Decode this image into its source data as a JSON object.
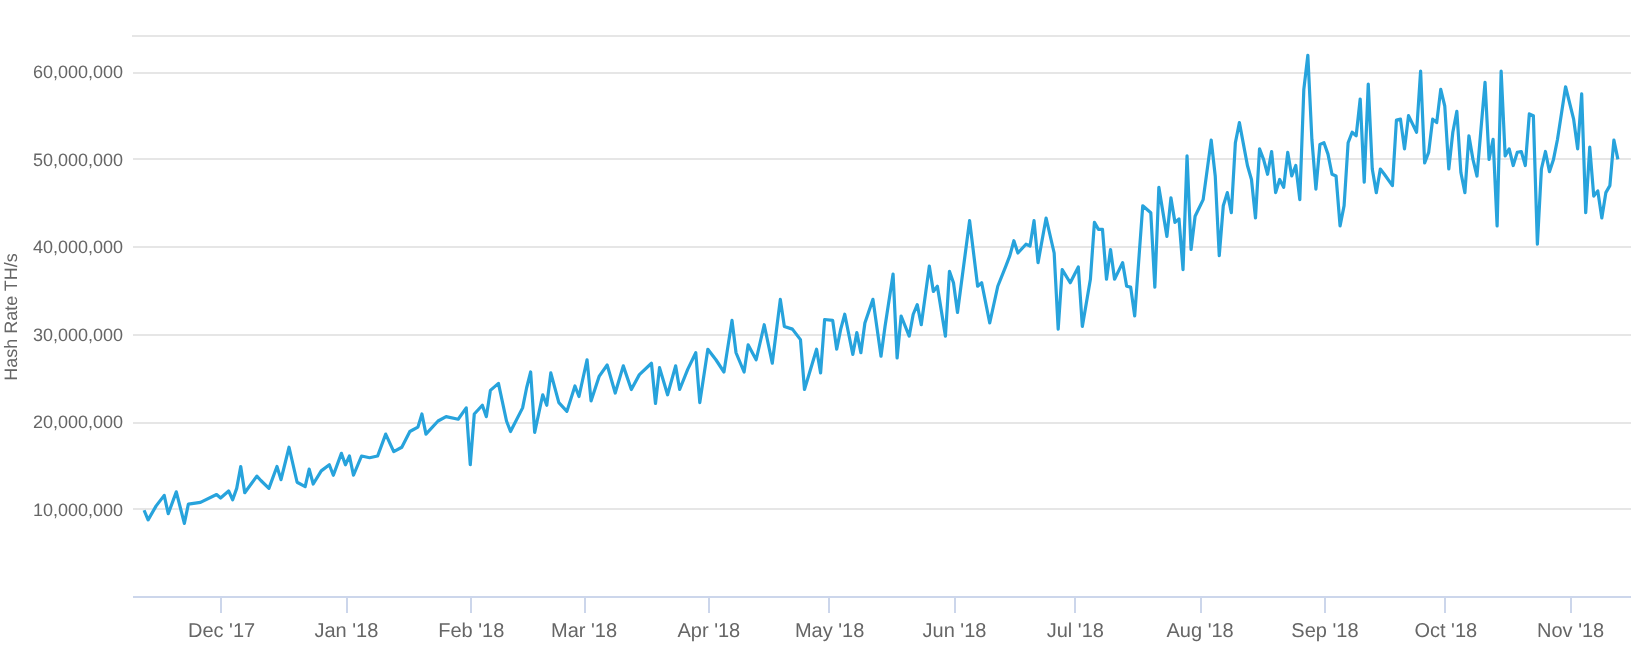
{
  "chart_data": {
    "type": "line",
    "ylabel": "Hash Rate TH/s",
    "grid": "y",
    "marker": "none",
    "line_style": "solid",
    "xlim": [
      "2017-11-09",
      "2018-11-16"
    ],
    "xticks": [
      {
        "value": "2017-12-01",
        "label": "Dec '17"
      },
      {
        "value": "2018-01-01",
        "label": "Jan '18"
      },
      {
        "value": "2018-02-01",
        "label": "Feb '18"
      },
      {
        "value": "2018-03-01",
        "label": "Mar '18"
      },
      {
        "value": "2018-04-01",
        "label": "Apr '18"
      },
      {
        "value": "2018-05-01",
        "label": "May '18"
      },
      {
        "value": "2018-06-01",
        "label": "Jun '18"
      },
      {
        "value": "2018-07-01",
        "label": "Jul '18"
      },
      {
        "value": "2018-08-01",
        "label": "Aug '18"
      },
      {
        "value": "2018-09-01",
        "label": "Sep '18"
      },
      {
        "value": "2018-10-01",
        "label": "Oct '18"
      },
      {
        "value": "2018-11-01",
        "label": "Nov '18"
      }
    ],
    "ylim": [
      0,
      64000000
    ],
    "yticks": [
      {
        "value": 10000000,
        "label": "10,000,000"
      },
      {
        "value": 20000000,
        "label": "20,000,000"
      },
      {
        "value": 30000000,
        "label": "30,000,000"
      },
      {
        "value": 40000000,
        "label": "40,000,000"
      },
      {
        "value": 50000000,
        "label": "50,000,000"
      },
      {
        "value": 60000000,
        "label": "60,000,000"
      }
    ],
    "x": [
      "2017-11-12",
      "2017-11-13",
      "2017-11-15",
      "2017-11-17",
      "2017-11-18",
      "2017-11-20",
      "2017-11-22",
      "2017-11-23",
      "2017-11-26",
      "2017-11-30",
      "2017-12-01",
      "2017-12-03",
      "2017-12-04",
      "2017-12-05",
      "2017-12-06",
      "2017-12-07",
      "2017-12-10",
      "2017-12-11",
      "2017-12-13",
      "2017-12-15",
      "2017-12-16",
      "2017-12-18",
      "2017-12-20",
      "2017-12-22",
      "2017-12-23",
      "2017-12-24",
      "2017-12-26",
      "2017-12-28",
      "2017-12-29",
      "2017-12-31",
      "2018-01-01",
      "2018-01-02",
      "2018-01-03",
      "2018-01-05",
      "2018-01-07",
      "2018-01-09",
      "2018-01-11",
      "2018-01-13",
      "2018-01-15",
      "2018-01-17",
      "2018-01-19",
      "2018-01-20",
      "2018-01-21",
      "2018-01-24",
      "2018-01-26",
      "2018-01-29",
      "2018-01-31",
      "2018-02-01",
      "2018-02-02",
      "2018-02-04",
      "2018-02-05",
      "2018-02-06",
      "2018-02-08",
      "2018-02-10",
      "2018-02-11",
      "2018-02-14",
      "2018-02-15",
      "2018-02-16",
      "2018-02-17",
      "2018-02-19",
      "2018-02-20",
      "2018-02-21",
      "2018-02-23",
      "2018-02-25",
      "2018-02-27",
      "2018-02-28",
      "2018-03-02",
      "2018-03-03",
      "2018-03-05",
      "2018-03-07",
      "2018-03-09",
      "2018-03-11",
      "2018-03-13",
      "2018-03-15",
      "2018-03-18",
      "2018-03-19",
      "2018-03-20",
      "2018-03-22",
      "2018-03-24",
      "2018-03-25",
      "2018-03-27",
      "2018-03-29",
      "2018-03-30",
      "2018-04-01",
      "2018-04-03",
      "2018-04-05",
      "2018-04-07",
      "2018-04-08",
      "2018-04-10",
      "2018-04-11",
      "2018-04-13",
      "2018-04-15",
      "2018-04-17",
      "2018-04-19",
      "2018-04-20",
      "2018-04-22",
      "2018-04-24",
      "2018-04-25",
      "2018-04-28",
      "2018-04-29",
      "2018-04-30",
      "2018-05-02",
      "2018-05-03",
      "2018-05-04",
      "2018-05-05",
      "2018-05-07",
      "2018-05-08",
      "2018-05-09",
      "2018-05-10",
      "2018-05-12",
      "2018-05-14",
      "2018-05-15",
      "2018-05-17",
      "2018-05-18",
      "2018-05-19",
      "2018-05-21",
      "2018-05-22",
      "2018-05-23",
      "2018-05-24",
      "2018-05-26",
      "2018-05-27",
      "2018-05-28",
      "2018-05-30",
      "2018-05-31",
      "2018-06-01",
      "2018-06-02",
      "2018-06-05",
      "2018-06-07",
      "2018-06-08",
      "2018-06-10",
      "2018-06-12",
      "2018-06-14",
      "2018-06-15",
      "2018-06-16",
      "2018-06-17",
      "2018-06-19",
      "2018-06-20",
      "2018-06-21",
      "2018-06-22",
      "2018-06-24",
      "2018-06-26",
      "2018-06-27",
      "2018-06-28",
      "2018-06-30",
      "2018-07-02",
      "2018-07-03",
      "2018-07-05",
      "2018-07-06",
      "2018-07-07",
      "2018-07-08",
      "2018-07-09",
      "2018-07-10",
      "2018-07-11",
      "2018-07-13",
      "2018-07-14",
      "2018-07-15",
      "2018-07-16",
      "2018-07-18",
      "2018-07-20",
      "2018-07-21",
      "2018-07-22",
      "2018-07-24",
      "2018-07-25",
      "2018-07-26",
      "2018-07-27",
      "2018-07-28",
      "2018-07-29",
      "2018-07-30",
      "2018-07-31",
      "2018-08-02",
      "2018-08-04",
      "2018-08-05",
      "2018-08-06",
      "2018-08-07",
      "2018-08-08",
      "2018-08-09",
      "2018-08-10",
      "2018-08-11",
      "2018-08-13",
      "2018-08-14",
      "2018-08-15",
      "2018-08-16",
      "2018-08-17",
      "2018-08-18",
      "2018-08-19",
      "2018-08-20",
      "2018-08-21",
      "2018-08-22",
      "2018-08-23",
      "2018-08-24",
      "2018-08-25",
      "2018-08-26",
      "2018-08-27",
      "2018-08-28",
      "2018-08-29",
      "2018-08-30",
      "2018-08-31",
      "2018-09-01",
      "2018-09-02",
      "2018-09-03",
      "2018-09-04",
      "2018-09-05",
      "2018-09-06",
      "2018-09-07",
      "2018-09-08",
      "2018-09-09",
      "2018-09-10",
      "2018-09-11",
      "2018-09-12",
      "2018-09-13",
      "2018-09-14",
      "2018-09-15",
      "2018-09-16",
      "2018-09-18",
      "2018-09-19",
      "2018-09-20",
      "2018-09-21",
      "2018-09-22",
      "2018-09-24",
      "2018-09-25",
      "2018-09-26",
      "2018-09-27",
      "2018-09-28",
      "2018-09-29",
      "2018-09-30",
      "2018-10-01",
      "2018-10-02",
      "2018-10-03",
      "2018-10-04",
      "2018-10-05",
      "2018-10-06",
      "2018-10-07",
      "2018-10-08",
      "2018-10-09",
      "2018-10-10",
      "2018-10-11",
      "2018-10-12",
      "2018-10-13",
      "2018-10-14",
      "2018-10-15",
      "2018-10-16",
      "2018-10-17",
      "2018-10-18",
      "2018-10-19",
      "2018-10-20",
      "2018-10-21",
      "2018-10-22",
      "2018-10-23",
      "2018-10-24",
      "2018-10-25",
      "2018-10-26",
      "2018-10-27",
      "2018-10-28",
      "2018-10-29",
      "2018-10-31",
      "2018-11-02",
      "2018-11-03",
      "2018-11-04",
      "2018-11-05",
      "2018-11-06",
      "2018-11-07",
      "2018-11-08",
      "2018-11-09",
      "2018-11-10",
      "2018-11-11",
      "2018-11-12",
      "2018-11-13"
    ],
    "series": [
      {
        "color": "#27a3dc",
        "values": [
          9800000,
          8700000,
          10300000,
          11500000,
          9400000,
          11900000,
          8300000,
          10500000,
          10700000,
          11600000,
          11200000,
          12000000,
          11000000,
          12300000,
          14800000,
          11800000,
          13700000,
          13200000,
          12300000,
          14800000,
          13300000,
          17000000,
          13000000,
          12500000,
          14500000,
          12800000,
          14300000,
          15000000,
          13800000,
          16300000,
          15000000,
          16000000,
          13800000,
          16000000,
          15800000,
          16000000,
          18500000,
          16500000,
          17000000,
          18800000,
          19300000,
          20800000,
          18500000,
          20000000,
          20500000,
          20200000,
          21500000,
          15000000,
          20800000,
          21800000,
          20500000,
          23500000,
          24300000,
          20000000,
          18800000,
          21500000,
          23800000,
          25600000,
          18700000,
          23000000,
          21800000,
          25500000,
          22100000,
          21100000,
          24000000,
          22800000,
          27000000,
          22300000,
          25100000,
          26400000,
          23200000,
          26300000,
          23600000,
          25300000,
          26600000,
          22000000,
          26100000,
          23000000,
          26300000,
          23600000,
          25900000,
          27800000,
          22100000,
          28200000,
          27000000,
          25600000,
          31500000,
          27800000,
          25600000,
          28700000,
          27000000,
          31000000,
          26600000,
          33900000,
          30800000,
          30500000,
          29300000,
          23600000,
          28200000,
          25500000,
          31600000,
          31500000,
          28200000,
          30500000,
          32200000,
          27600000,
          30100000,
          27800000,
          31200000,
          33900000,
          27400000,
          30800000,
          36800000,
          27200000,
          32000000,
          29700000,
          32200000,
          33300000,
          31000000,
          37700000,
          34800000,
          35400000,
          29700000,
          37100000,
          35800000,
          32400000,
          42900000,
          35400000,
          35800000,
          31200000,
          35400000,
          37700000,
          38900000,
          40600000,
          39200000,
          40200000,
          40000000,
          42900000,
          38100000,
          43200000,
          39200000,
          30500000,
          37300000,
          35800000,
          37600000,
          30800000,
          36200000,
          42700000,
          41900000,
          41900000,
          36200000,
          39600000,
          36200000,
          38100000,
          35400000,
          35300000,
          32000000,
          44600000,
          43800000,
          35300000,
          46700000,
          41100000,
          45500000,
          42700000,
          43100000,
          37300000,
          50300000,
          39600000,
          43400000,
          45300000,
          52100000,
          48000000,
          38900000,
          44600000,
          46100000,
          43800000,
          51800000,
          54100000,
          49200000,
          47600000,
          43200000,
          51100000,
          49900000,
          48200000,
          50800000,
          46100000,
          47600000,
          46700000,
          50700000,
          48000000,
          49200000,
          45300000,
          57900000,
          61800000,
          52200000,
          46500000,
          51600000,
          51800000,
          50500000,
          48200000,
          48000000,
          42300000,
          44600000,
          51800000,
          53000000,
          52600000,
          56800000,
          47300000,
          58500000,
          48800000,
          46100000,
          48800000,
          48200000,
          46900000,
          54400000,
          54500000,
          51100000,
          54900000,
          53000000,
          60000000,
          49500000,
          50700000,
          54500000,
          54100000,
          57900000,
          56000000,
          48800000,
          53000000,
          55400000,
          48400000,
          46100000,
          52600000,
          49900000,
          48000000,
          53400000,
          58700000,
          49900000,
          52200000,
          42300000,
          60000000,
          50300000,
          51100000,
          49200000,
          50700000,
          50800000,
          49200000,
          55100000,
          54900000,
          40200000,
          48800000,
          50800000,
          48500000,
          49900000,
          52200000,
          58200000,
          54500000,
          51100000,
          57400000,
          43800000,
          51300000,
          45700000,
          46300000,
          43200000,
          46100000,
          46900000,
          52100000,
          49900000
        ]
      }
    ]
  }
}
